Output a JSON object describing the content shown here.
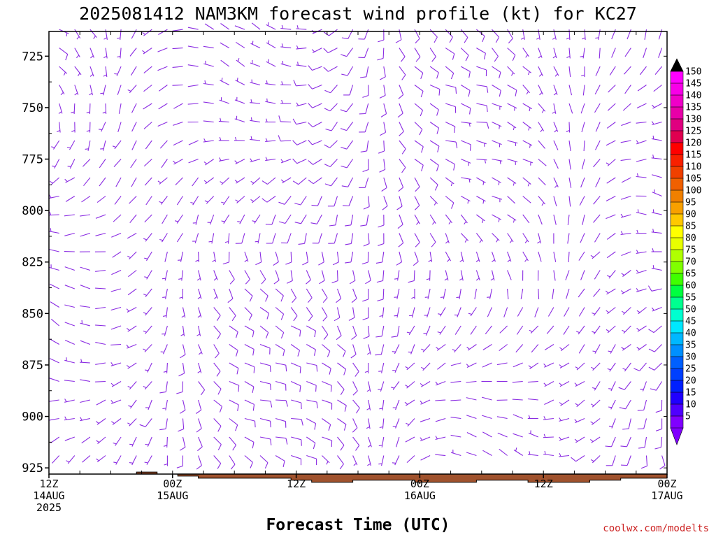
{
  "title": "2025081412 NAM3KM forecast wind profile (kt) for KC27",
  "xlabel": "Forecast Time (UTC)",
  "credit": "coolwx.com/modelts",
  "colors": {
    "barb": "#8a2be2",
    "terrain": "#a0522d",
    "background": "#ffffff"
  },
  "chart_data": {
    "type": "wind-barb time-height cross-section",
    "title": "2025081412 NAM3KM forecast wind profile (kt) for KC27",
    "xlabel": "Forecast Time (UTC)",
    "ylabel": "",
    "y_axis": {
      "unit": "hPa",
      "direction": "inverted",
      "ylim": [
        928,
        713
      ],
      "ticks": [
        725,
        750,
        775,
        800,
        825,
        850,
        875,
        900,
        925
      ]
    },
    "x_axis": {
      "unit": "hours after 2025-08-14 12Z",
      "xlim": [
        0,
        60
      ],
      "ticks": [
        {
          "hour": 0,
          "lines": [
            "12Z",
            "14AUG",
            "2025"
          ]
        },
        {
          "hour": 12,
          "lines": [
            "00Z",
            "15AUG"
          ]
        },
        {
          "hour": 24,
          "lines": [
            "12Z"
          ]
        },
        {
          "hour": 36,
          "lines": [
            "00Z",
            "16AUG"
          ]
        },
        {
          "hour": 48,
          "lines": [
            "12Z"
          ]
        },
        {
          "hour": 60,
          "lines": [
            "00Z",
            "17AUG"
          ]
        }
      ],
      "minor_tick_hours": 3
    },
    "barb_levels_hPa": [
      712,
      721,
      730,
      739,
      748,
      757,
      766,
      775,
      784,
      793,
      802,
      811,
      820,
      829,
      838,
      847,
      856,
      865,
      874,
      883,
      892,
      901,
      910,
      919
    ],
    "barb_times_hours": [
      1,
      2.5,
      4,
      5.5,
      7,
      8.5,
      10,
      11.5,
      13,
      14.5,
      16,
      17.5,
      19,
      20.5,
      22,
      23.5,
      25,
      26.5,
      28,
      29.5,
      31,
      32.5,
      34,
      35.5,
      37,
      38.5,
      40,
      41.5,
      43,
      44.5,
      46,
      47.5,
      49,
      50.5,
      52,
      53.5,
      55,
      56.5,
      58,
      59.5
    ],
    "speed_range_kt": [
      0,
      20
    ],
    "surface_pressure_hPa": [
      {
        "hour": 0,
        "p": 928
      },
      {
        "hour": 8.5,
        "p": 928
      },
      {
        "hour": 8.5,
        "p": 927
      },
      {
        "hour": 10.5,
        "p": 927
      },
      {
        "hour": 10.5,
        "p": 928
      },
      {
        "hour": 12.5,
        "p": 928
      },
      {
        "hour": 12.5,
        "p": 929
      },
      {
        "hour": 14.5,
        "p": 929
      },
      {
        "hour": 14.5,
        "p": 930
      },
      {
        "hour": 23.5,
        "p": 930
      },
      {
        "hour": 23.5,
        "p": 931
      },
      {
        "hour": 25.5,
        "p": 931
      },
      {
        "hour": 25.5,
        "p": 932
      },
      {
        "hour": 29.5,
        "p": 932
      },
      {
        "hour": 29.5,
        "p": 931
      },
      {
        "hour": 35.5,
        "p": 931
      },
      {
        "hour": 35.5,
        "p": 932
      },
      {
        "hour": 41.5,
        "p": 932
      },
      {
        "hour": 41.5,
        "p": 931
      },
      {
        "hour": 46.5,
        "p": 931
      },
      {
        "hour": 46.5,
        "p": 932
      },
      {
        "hour": 52.5,
        "p": 932
      },
      {
        "hour": 52.5,
        "p": 931
      },
      {
        "hour": 55.5,
        "p": 931
      },
      {
        "hour": 55.5,
        "p": 930
      },
      {
        "hour": 60,
        "p": 930
      }
    ]
  },
  "colorbar": {
    "labels": [
      "150",
      "145",
      "140",
      "135",
      "130",
      "125",
      "120",
      "115",
      "110",
      "105",
      "100",
      "95",
      "90",
      "85",
      "80",
      "75",
      "70",
      "65",
      "60",
      "55",
      "50",
      "45",
      "40",
      "35",
      "30",
      "25",
      "20",
      "15",
      "10",
      "5"
    ],
    "colors": [
      "#ff00ff",
      "#f800e8",
      "#f000c8",
      "#e800a8",
      "#e00080",
      "#e00050",
      "#ff0000",
      "#f82000",
      "#f04000",
      "#f06000",
      "#f08000",
      "#f8a000",
      "#ffc800",
      "#ffff00",
      "#e8ff00",
      "#b0ff00",
      "#80ff00",
      "#40ff00",
      "#00ff40",
      "#00ff90",
      "#00ffd0",
      "#00e8ff",
      "#00b8ff",
      "#0090ff",
      "#0060ff",
      "#0040ff",
      "#0020ff",
      "#2000ff",
      "#5000ff",
      "#8000ff"
    ],
    "top_arrow_color": "#000000",
    "bottom_arrow_color": "#8000ff"
  }
}
